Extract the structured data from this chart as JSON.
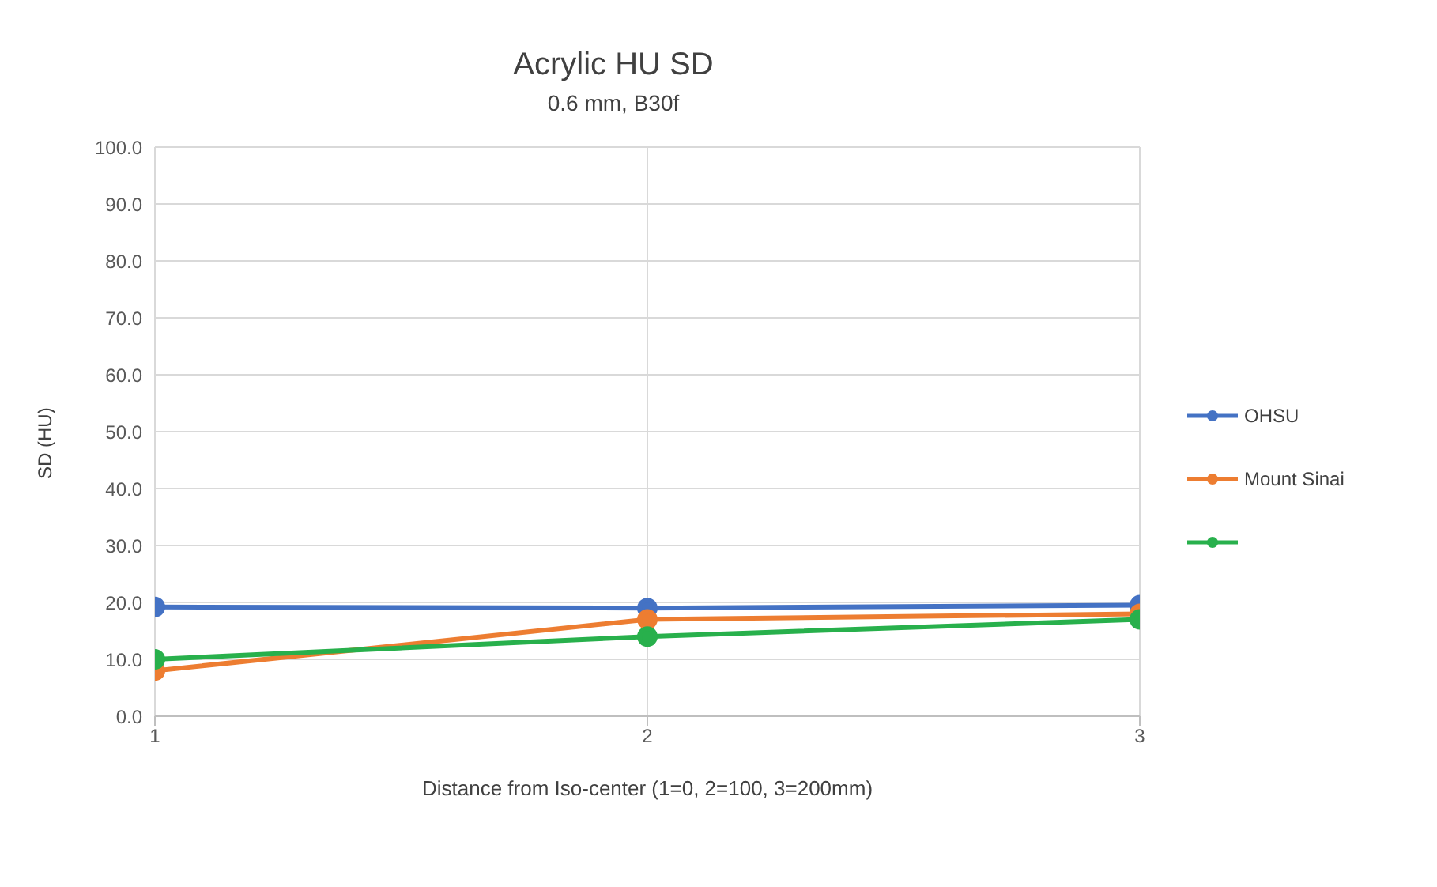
{
  "chart_data": {
    "type": "line",
    "title": "Acrylic HU SD",
    "subtitle": "0.6 mm, B30f",
    "xlabel": "Distance from Iso-center (1=0, 2=100, 3=200mm)",
    "ylabel": "SD (HU)",
    "x": [
      1,
      2,
      3
    ],
    "xlim": [
      1,
      3
    ],
    "xticks": [
      1,
      2,
      3
    ],
    "ylim": [
      0,
      100
    ],
    "yticks": [
      {
        "value": 0,
        "label": "0.0"
      },
      {
        "value": 10,
        "label": "10.0"
      },
      {
        "value": 20,
        "label": "20.0"
      },
      {
        "value": 30,
        "label": "30.0"
      },
      {
        "value": 40,
        "label": "40.0"
      },
      {
        "value": 50,
        "label": "50.0"
      },
      {
        "value": 60,
        "label": "60.0"
      },
      {
        "value": 70,
        "label": "70.0"
      },
      {
        "value": 80,
        "label": "80.0"
      },
      {
        "value": 90,
        "label": "90.0"
      },
      {
        "value": 100,
        "label": "100.0"
      }
    ],
    "grid": true,
    "legend": "right",
    "marker": "circle",
    "line_style": "solid",
    "series": [
      {
        "name": "OHSU",
        "color": "#4472c4",
        "values": [
          19.2,
          19,
          19.5
        ]
      },
      {
        "name": "Mount Sinai",
        "color": "#ed7d31",
        "values": [
          8,
          17,
          18
        ]
      },
      {
        "color": "#28b04c",
        "values": [
          10,
          14,
          17
        ]
      }
    ]
  }
}
